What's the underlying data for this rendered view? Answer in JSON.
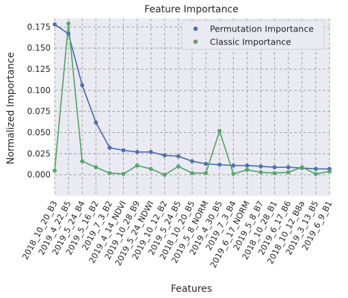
{
  "chart_data": {
    "type": "line",
    "title": "Feature Importance",
    "xlabel": "Features",
    "ylabel": "Normalized Importance",
    "categories": [
      "2018_10_20_B3",
      "2019_4_22_B5",
      "2019_5_24_B4",
      "2019_5_16_B2",
      "2019_7_3_B2",
      "2019_4_14_NDVI",
      "2019_10_28_B9",
      "2019_5_24_NDWI",
      "2019_10_12_B2",
      "2019_5_24_B5",
      "2018_10_20_B5",
      "2019_5_8_NORM",
      "2019_4_30_B5",
      "2019_7_3_B4",
      "2019_6_17_NORM",
      "2019_5_8_B7",
      "2018_10_28_B1",
      "2019_6_17_B6",
      "2018_10_12_B8a",
      "2019_3_13_B5",
      "2019_6_9_B1"
    ],
    "series": [
      {
        "name": "Permutation Importance",
        "color": "#4c72b0",
        "values": [
          0.178,
          0.167,
          0.106,
          0.062,
          0.032,
          0.029,
          0.027,
          0.027,
          0.023,
          0.022,
          0.016,
          0.013,
          0.012,
          0.011,
          0.011,
          0.01,
          0.009,
          0.009,
          0.008,
          0.007,
          0.007
        ]
      },
      {
        "name": "Classic Importance",
        "color": "#55a868",
        "values": [
          0.005,
          0.179,
          0.016,
          0.009,
          0.002,
          0.001,
          0.011,
          0.007,
          0.0,
          0.01,
          0.002,
          0.002,
          0.052,
          0.001,
          0.006,
          0.003,
          0.002,
          0.003,
          0.009,
          0.001,
          0.004
        ]
      }
    ],
    "yticks": [
      "0.000",
      "0.025",
      "0.050",
      "0.075",
      "0.100",
      "0.125",
      "0.150",
      "0.175"
    ],
    "ylim": [
      -0.025,
      0.185
    ],
    "grid": true,
    "legend_position": "top-right",
    "colors": {
      "background": "#eaeaf2",
      "grid": "#a0a0a0"
    }
  }
}
